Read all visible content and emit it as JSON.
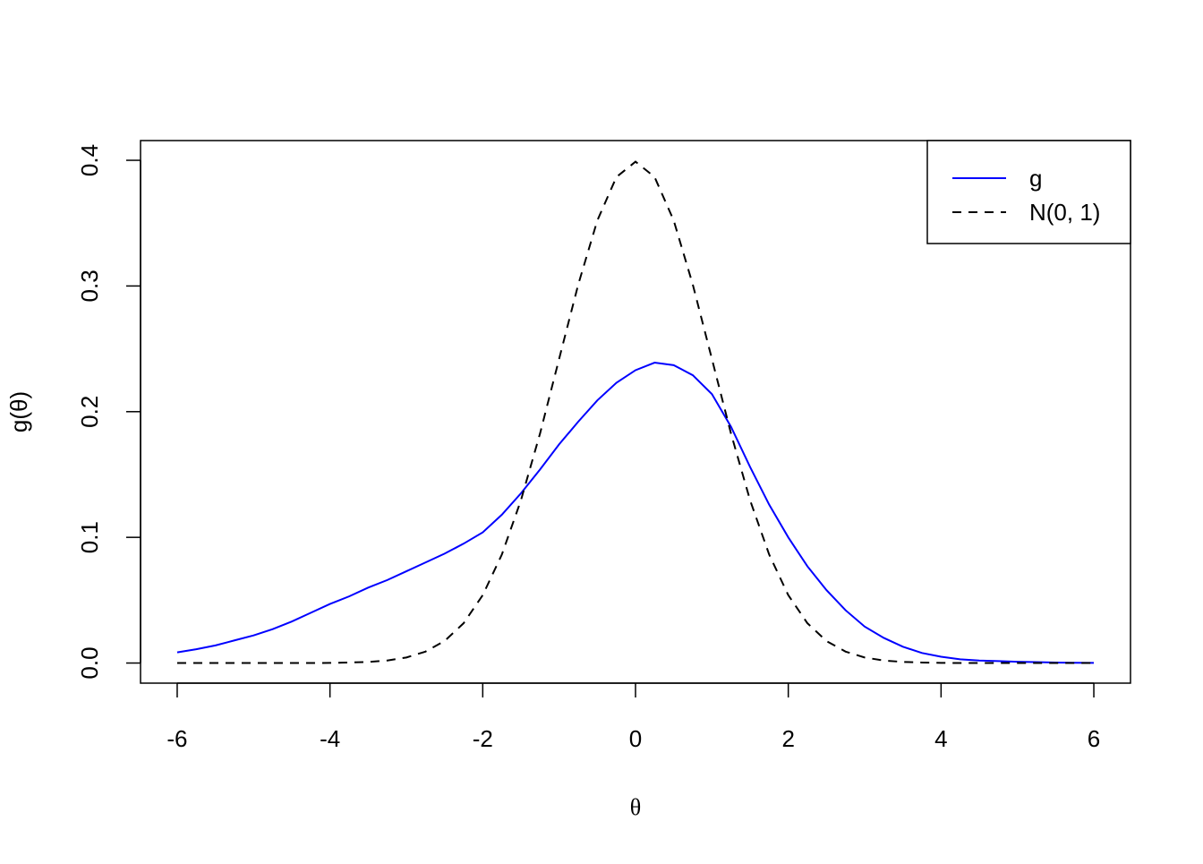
{
  "chart_data": {
    "type": "line",
    "xlabel": "θ",
    "ylabel": "g(θ)",
    "x": [
      -6,
      -5.75,
      -5.5,
      -5.25,
      -5,
      -4.75,
      -4.5,
      -4.25,
      -4,
      -3.75,
      -3.5,
      -3.25,
      -3,
      -2.75,
      -2.5,
      -2.25,
      -2,
      -1.75,
      -1.5,
      -1.25,
      -1,
      -0.75,
      -0.5,
      -0.25,
      0,
      0.25,
      0.5,
      0.75,
      1,
      1.25,
      1.5,
      1.75,
      2,
      2.25,
      2.5,
      2.75,
      3,
      3.25,
      3.5,
      3.75,
      4,
      4.25,
      4.5,
      4.75,
      5,
      5.25,
      5.5,
      5.75,
      6
    ],
    "series": [
      {
        "name": "g",
        "color": "#0000ff",
        "linestyle": "solid",
        "values": [
          0.0085,
          0.011,
          0.014,
          0.018,
          0.022,
          0.027,
          0.033,
          0.04,
          0.047,
          0.053,
          0.06,
          0.066,
          0.073,
          0.08,
          0.087,
          0.095,
          0.104,
          0.118,
          0.135,
          0.154,
          0.174,
          0.192,
          0.209,
          0.223,
          0.233,
          0.239,
          0.237,
          0.229,
          0.214,
          0.188,
          0.156,
          0.126,
          0.1,
          0.077,
          0.058,
          0.042,
          0.029,
          0.02,
          0.013,
          0.008,
          0.005,
          0.003,
          0.002,
          0.0015,
          0.001,
          0.0007,
          0.0004,
          0.0002,
          0.0001
        ]
      },
      {
        "name": "N(0, 1)",
        "color": "#000000",
        "linestyle": "dashed",
        "values": [
          0,
          0,
          0,
          0,
          0,
          0,
          0,
          0,
          0.0001,
          0.0004,
          0.0009,
          0.002,
          0.0044,
          0.0091,
          0.0175,
          0.0317,
          0.054,
          0.0863,
          0.1295,
          0.1826,
          0.242,
          0.3011,
          0.3521,
          0.3867,
          0.3989,
          0.3867,
          0.3521,
          0.3011,
          0.242,
          0.1826,
          0.1295,
          0.0863,
          0.054,
          0.0317,
          0.0175,
          0.0091,
          0.0044,
          0.002,
          0.0009,
          0.0004,
          0.0001,
          0,
          0,
          0,
          0,
          0,
          0,
          0,
          0
        ]
      }
    ],
    "xlim": [
      -6.48,
      6.48
    ],
    "ylim": [
      -0.016,
      0.4157
    ],
    "xticks": [
      -6,
      -4,
      -2,
      0,
      2,
      4,
      6
    ],
    "yticks": [
      {
        "value": 0,
        "label": "0.0"
      },
      0.1,
      0.2,
      0.3,
      0.4
    ],
    "legend": "top-right"
  }
}
